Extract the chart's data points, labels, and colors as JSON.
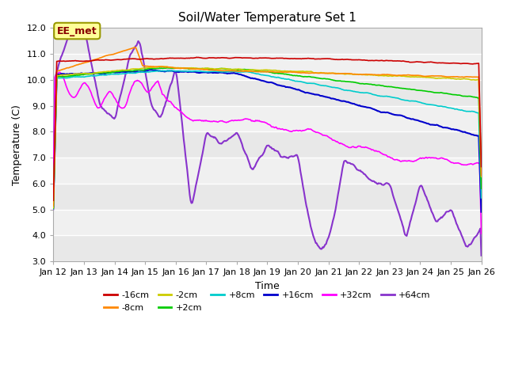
{
  "title": "Soil/Water Temperature Set 1",
  "xlabel": "Time",
  "ylabel": "Temperature (C)",
  "ylim": [
    3.0,
    12.0
  ],
  "yticks": [
    3.0,
    4.0,
    5.0,
    6.0,
    7.0,
    8.0,
    9.0,
    10.0,
    11.0,
    12.0
  ],
  "xlim": [
    0,
    14
  ],
  "xtick_labels": [
    "Jan 12",
    "Jan 13",
    "Jan 14",
    "Jan 15",
    "Jan 16",
    "Jan 17",
    "Jan 18",
    "Jan 19",
    "Jan 20",
    "Jan 21",
    "Jan 22",
    "Jan 23",
    "Jan 24",
    "Jan 25",
    "Jan 26"
  ],
  "annotation": {
    "text": "EE_met"
  },
  "background_color": "#ffffff",
  "plot_bg_light": "#e8e8e8",
  "plot_bg_dark": "#d8d8d8",
  "grid_color": "#ffffff",
  "legend_row1": [
    "-16cm",
    "-8cm",
    "-2cm",
    "+2cm",
    "+8cm",
    "+16cm"
  ],
  "legend_row2": [
    "+32cm",
    "+64cm"
  ],
  "legend_colors": {
    "-16cm": "#cc0000",
    "-8cm": "#ff8800",
    "-2cm": "#cccc00",
    "+2cm": "#00cc00",
    "+8cm": "#00cccc",
    "+16cm": "#0000cc",
    "+32cm": "#ff00ff",
    "+64cm": "#8833cc"
  }
}
